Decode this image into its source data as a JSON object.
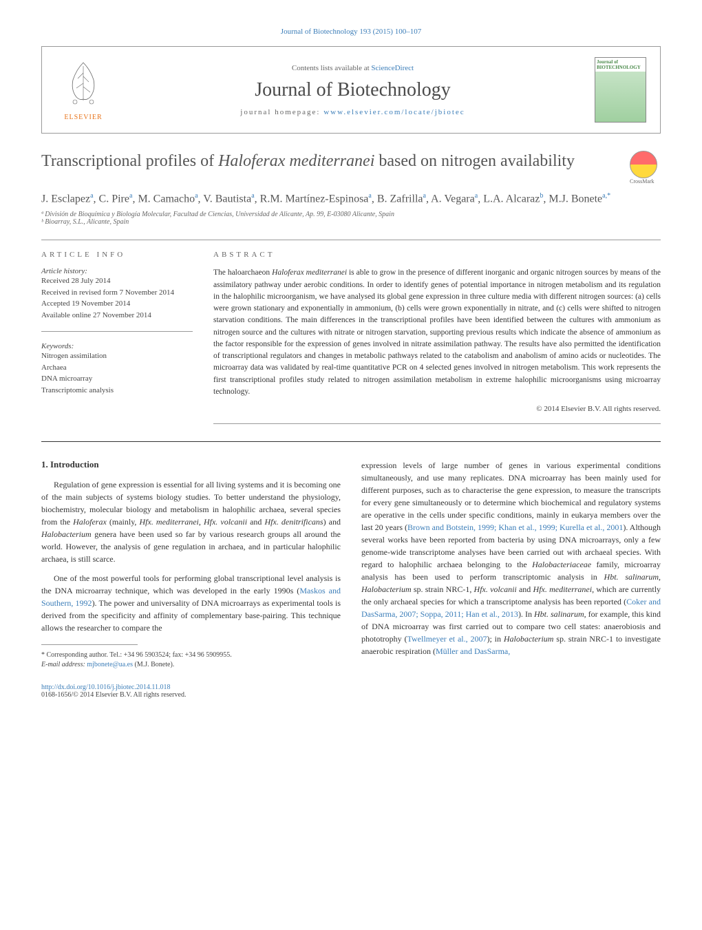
{
  "top_link": "Journal of Biotechnology 193 (2015) 100–107",
  "header": {
    "elsevier_label": "ELSEVIER",
    "contents_available": "Contents lists available at ",
    "sciencedirect": "ScienceDirect",
    "journal_name": "Journal of Biotechnology",
    "homepage_prefix": "journal homepage: ",
    "homepage_url": "www.elsevier.com/locate/jbiotec",
    "cover_text": "Journal of BIOTECHNOLOGY"
  },
  "title": {
    "main": "Transcriptional profiles of ",
    "italic": "Haloferax mediterranei",
    "suffix": " based on nitrogen availability"
  },
  "crossmark_label": "CrossMark",
  "authors_html": "J. Esclapez<sup>a</sup>, C. Pire<sup>a</sup>, M. Camacho<sup>a</sup>, V. Bautista<sup>a</sup>, R.M. Martínez-Espinosa<sup>a</sup>, B. Zafrilla<sup>a</sup>, A. Vegara<sup>a</sup>, L.A. Alcaraz<sup>b</sup>, M.J. Bonete<sup>a,*</sup>",
  "affiliations": {
    "a": "ª División de Bioquímica y Biología Molecular, Facultad de Ciencias, Universidad de Alicante, Ap. 99, E-03080 Alicante, Spain",
    "b": "ᵇ Bioarray, S.L., Alicante, Spain"
  },
  "article_info": {
    "header": "ARTICLE INFO",
    "history_label": "Article history:",
    "received": "Received 28 July 2014",
    "revised": "Received in revised form 7 November 2014",
    "accepted": "Accepted 19 November 2014",
    "online": "Available online 27 November 2014",
    "keywords_label": "Keywords:",
    "kw1": "Nitrogen assimilation",
    "kw2": "Archaea",
    "kw3": "DNA microarray",
    "kw4": "Transcriptomic analysis"
  },
  "abstract": {
    "header": "ABSTRACT",
    "text": "The haloarchaeon <em>Haloferax mediterranei</em> is able to grow in the presence of different inorganic and organic nitrogen sources by means of the assimilatory pathway under aerobic conditions. In order to identify genes of potential importance in nitrogen metabolism and its regulation in the halophilic microorganism, we have analysed its global gene expression in three culture media with different nitrogen sources: (a) cells were grown stationary and exponentially in ammonium, (b) cells were grown exponentially in nitrate, and (c) cells were shifted to nitrogen starvation conditions. The main differences in the transcriptional profiles have been identified between the cultures with ammonium as nitrogen source and the cultures with nitrate or nitrogen starvation, supporting previous results which indicate the absence of ammonium as the factor responsible for the expression of genes involved in nitrate assimilation pathway. The results have also permitted the identification of transcriptional regulators and changes in metabolic pathways related to the catabolism and anabolism of amino acids or nucleotides. The microarray data was validated by real-time quantitative PCR on 4 selected genes involved in nitrogen metabolism. This work represents the first transcriptional profiles study related to nitrogen assimilation metabolism in extreme halophilic microorganisms using microarray technology.",
    "copyright": "© 2014 Elsevier B.V. All rights reserved."
  },
  "intro": {
    "number_title": "1. Introduction",
    "p1": "Regulation of gene expression is essential for all living systems and it is becoming one of the main subjects of systems biology studies. To better understand the physiology, biochemistry, molecular biology and metabolism in halophilic archaea, several species from the <em>Haloferax</em> (mainly, <em>Hfx. mediterranei</em>, <em>Hfx. volcanii</em> and <em>Hfx. denitrificans</em>) and <em>Halobacterium</em> genera have been used so far by various research groups all around the world. However, the analysis of gene regulation in archaea, and in particular halophilic archaea, is still scarce.",
    "p2": "One of the most powerful tools for performing global transcriptional level analysis is the DNA microarray technique, which was developed in the early 1990s (<a>Maskos and Southern, 1992</a>). The power and universality of DNA microarrays as experimental tools is derived from the specificity and affinity of complementary base-pairing. This technique allows the researcher to compare the",
    "p3": "expression levels of large number of genes in various experimental conditions simultaneously, and use many replicates. DNA microarray has been mainly used for different purposes, such as to characterise the gene expression, to measure the transcripts for every gene simultaneously or to determine which biochemical and regulatory systems are operative in the cells under specific conditions, mainly in eukarya members over the last 20 years (<a>Brown and Botstein, 1999; Khan et al., 1999; Kurella et al., 2001</a>). Although several works have been reported from bacteria by using DNA microarrays, only a few genome-wide transcriptome analyses have been carried out with archaeal species. With regard to halophilic archaea belonging to the <em>Halobacteriaceae</em> family, microarray analysis has been used to perform transcriptomic analysis in <em>Hbt. salinarum</em>, <em>Halobacterium</em> sp. strain NRC-1, <em>Hfx. volcanii</em> and <em>Hfx. mediterranei</em>, which are currently the only archaeal species for which a transcriptome analysis has been reported (<a>Coker and DasSarma, 2007; Soppa, 2011; Han et al., 2013</a>). In <em>Hbt. salinarum</em>, for example, this kind of DNA microarray was first carried out to compare two cell states: anaerobiosis and phototrophy (<a>Twellmeyer et al., 2007</a>); in <em>Halobacterium</em> sp. strain NRC-1 to investigate anaerobic respiration (<a>Müller and DasSarma,</a>"
  },
  "footnote": {
    "corresponding": "* Corresponding author. Tel.: +34 96 5903524; fax: +34 96 5909955.",
    "email_label": "E-mail address: ",
    "email": "mjbonete@ua.es",
    "email_name": " (M.J. Bonete)."
  },
  "bottom": {
    "doi": "http://dx.doi.org/10.1016/j.jbiotec.2014.11.018",
    "issn": "0168-1656/© 2014 Elsevier B.V. All rights reserved."
  },
  "colors": {
    "link": "#3b7db8",
    "elsevier_orange": "#e8731a",
    "text": "#333333",
    "heading": "#555555"
  },
  "typography": {
    "title_fontsize": 24,
    "journal_name_fontsize": 28,
    "authors_fontsize": 16,
    "body_fontsize": 12,
    "abstract_fontsize": 11.5,
    "info_fontsize": 11,
    "footnote_fontsize": 10
  }
}
